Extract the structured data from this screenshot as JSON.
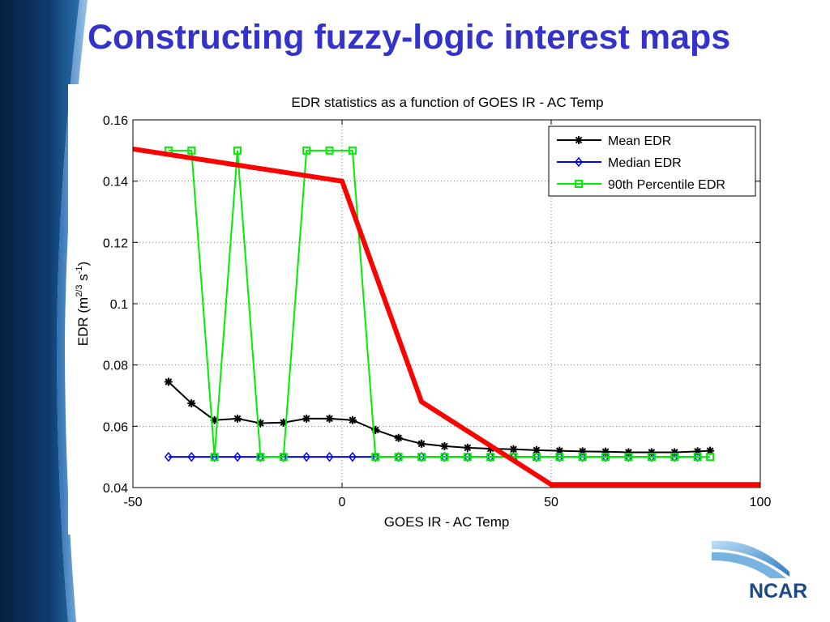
{
  "slide": {
    "title": "Constructing fuzzy-logic interest maps",
    "logo_text": "NCAR",
    "colors": {
      "title": "#3333cc",
      "sidebar_dark": "#0a2a52",
      "sidebar_light": "#2a6fb0",
      "logo": "#1a4a86"
    }
  },
  "chart_data": {
    "type": "line",
    "title": "EDR statistics as a function of GOES IR - AC Temp",
    "xlabel": "GOES IR - AC Temp",
    "ylabel": "EDR (m^2/3 s^-1)",
    "xlim": [
      -50,
      100
    ],
    "ylim": [
      0.04,
      0.16
    ],
    "xticks": [
      "-50",
      "0",
      "50",
      "100"
    ],
    "yticks": [
      "0.04",
      "0.06",
      "0.08",
      "0.1",
      "0.12",
      "0.14",
      "0.16"
    ],
    "grid": true,
    "legend_position": "top-right",
    "series": [
      {
        "name": "Mean EDR",
        "color": "#000000",
        "marker": "asterisk",
        "x": [
          -41.5,
          -36,
          -30.5,
          -25,
          -19.5,
          -14,
          -8.5,
          -3,
          2.5,
          8,
          13.5,
          19,
          24.5,
          30,
          35.5,
          41,
          46.5,
          52,
          57.5,
          63,
          68.5,
          74,
          79.5,
          85,
          88
        ],
        "y": [
          0.0745,
          0.0675,
          0.062,
          0.0625,
          0.061,
          0.0612,
          0.0625,
          0.0625,
          0.062,
          0.0588,
          0.0562,
          0.0543,
          0.0535,
          0.053,
          0.0527,
          0.0525,
          0.0522,
          0.052,
          0.0518,
          0.0517,
          0.0515,
          0.0515,
          0.0515,
          0.0518,
          0.052
        ]
      },
      {
        "name": "Median EDR",
        "color": "#0000ff",
        "marker": "diamond",
        "x": [
          -41.5,
          -36,
          -30.5,
          -25,
          -19.5,
          -14,
          -8.5,
          -3,
          2.5,
          8,
          13.5,
          19,
          24.5,
          30,
          35.5,
          41,
          46.5,
          52,
          57.5,
          63,
          68.5,
          74,
          79.5,
          85
        ],
        "y": [
          0.05,
          0.05,
          0.05,
          0.05,
          0.05,
          0.05,
          0.05,
          0.05,
          0.05,
          0.05,
          0.05,
          0.05,
          0.05,
          0.05,
          0.05,
          0.05,
          0.05,
          0.05,
          0.05,
          0.05,
          0.05,
          0.05,
          0.05,
          0.05
        ]
      },
      {
        "name": "90th Percentile EDR",
        "color": "#00ee00",
        "marker": "square",
        "x": [
          -41.5,
          -36,
          -30.5,
          -25,
          -19.5,
          -14,
          -8.5,
          -3,
          2.5,
          8,
          13.5,
          19,
          24.5,
          30,
          35.5,
          41,
          46.5,
          52,
          57.5,
          63,
          68.5,
          74,
          79.5,
          85,
          88
        ],
        "y": [
          0.15,
          0.15,
          0.05,
          0.15,
          0.05,
          0.05,
          0.15,
          0.15,
          0.15,
          0.05,
          0.05,
          0.05,
          0.05,
          0.05,
          0.05,
          0.05,
          0.05,
          0.05,
          0.05,
          0.05,
          0.05,
          0.05,
          0.05,
          0.05,
          0.05
        ]
      }
    ],
    "overlay": {
      "color": "#ff0000",
      "x": [
        -50,
        0,
        19,
        50,
        100
      ],
      "y": [
        0.1505,
        0.14,
        0.068,
        0.041,
        0.041
      ]
    }
  }
}
